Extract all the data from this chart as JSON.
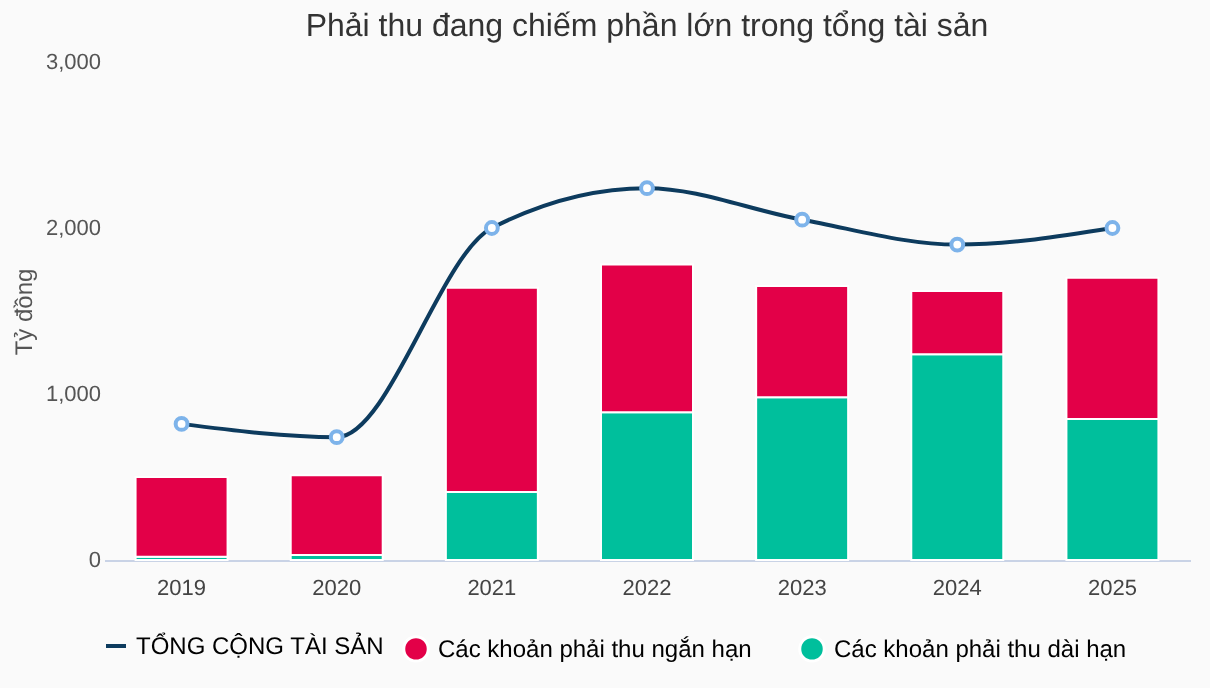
{
  "chart_data": {
    "type": "bar",
    "title": "Phải thu đang chiếm phần lớn trong tổng tài sản",
    "ylabel": "Tỷ đồng",
    "categories": [
      "2019",
      "2020",
      "2021",
      "2022",
      "2023",
      "2024",
      "2025"
    ],
    "stacked": true,
    "series": [
      {
        "name": "Các khoản phải thu dài hạn",
        "color": "#00bf9c",
        "values": [
          20,
          30,
          410,
          890,
          980,
          1240,
          850
        ]
      },
      {
        "name": "Các khoản phải thu ngắn hạn",
        "color": "#e30048",
        "values": [
          480,
          480,
          1230,
          890,
          670,
          380,
          850
        ]
      },
      {
        "name": "TỔNG CỘNG TÀI SẢN",
        "type": "line",
        "color": "#0d3b5e",
        "marker": "circle",
        "values": [
          820,
          740,
          2000,
          2240,
          2050,
          1900,
          2000
        ]
      }
    ],
    "ylim": [
      0,
      3000
    ],
    "yticks": [
      0,
      {
        "value": 1000,
        "label": "1,000"
      },
      {
        "value": 2000,
        "label": "2,000"
      },
      {
        "value": 3000,
        "label": "3,000"
      }
    ],
    "grid": false,
    "legend": "bottom"
  }
}
